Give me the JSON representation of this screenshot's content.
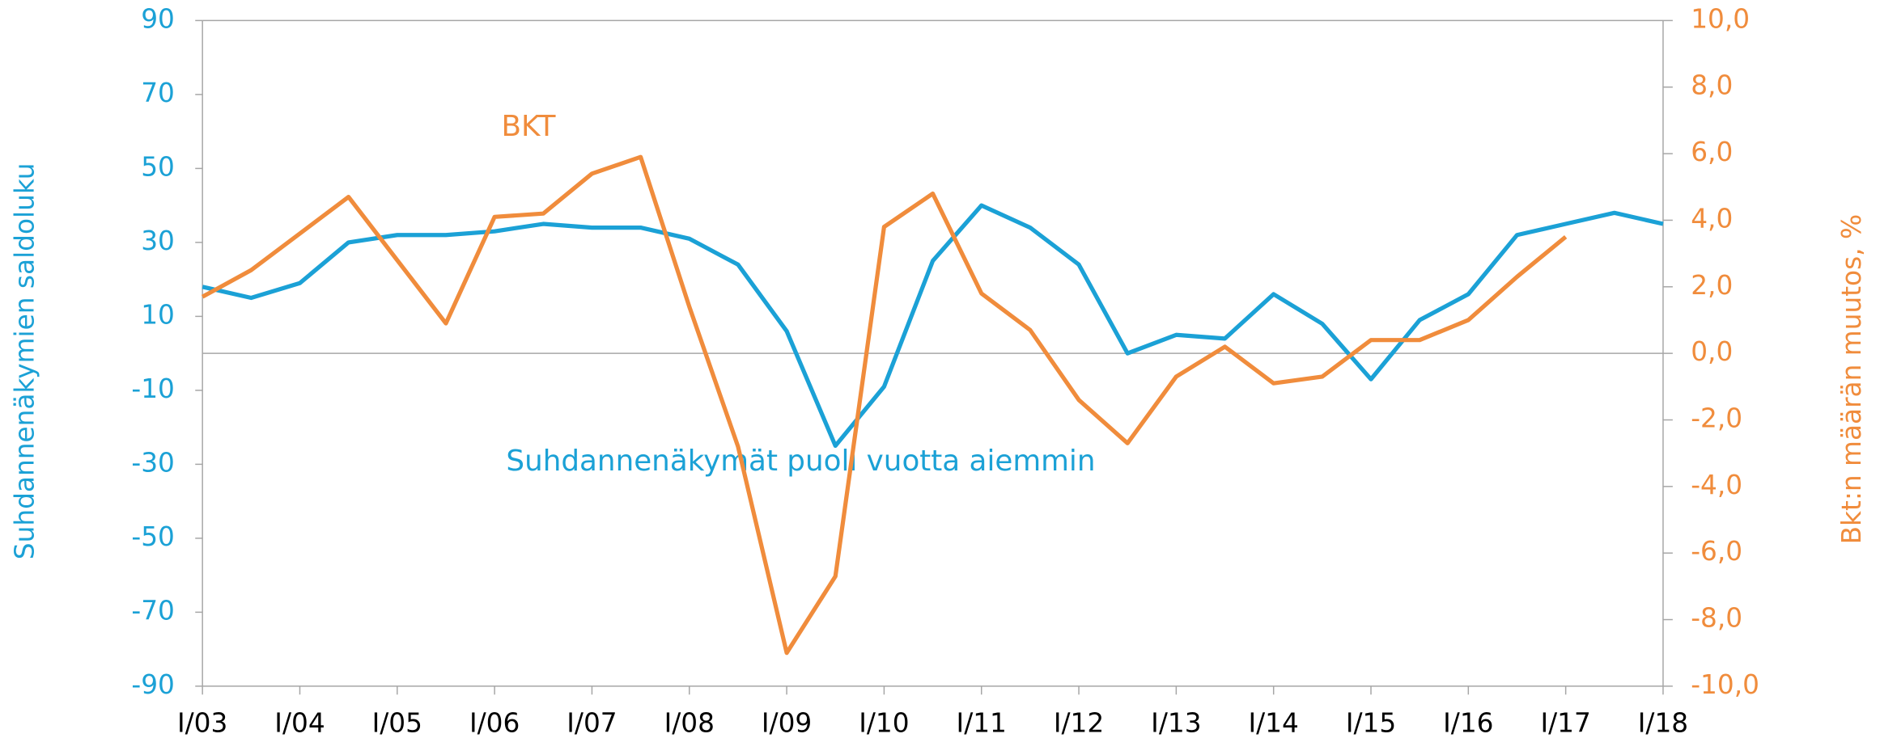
{
  "chart_data": {
    "type": "line",
    "y_label": "Suhdannenäkymien saldoluku",
    "y2_label": "Bkt:n määrän muutos, %",
    "annotations": [
      "BKT",
      "Suhdannenäkymät puoli vuotta aiemmin"
    ],
    "categories": [
      "I/03",
      null,
      "I/04",
      null,
      "I/05",
      null,
      "I/06",
      null,
      "I/07",
      null,
      "I/08",
      null,
      "I/09",
      null,
      "I/10",
      null,
      "I/11",
      null,
      "I/12",
      null,
      "I/13",
      null,
      "I/14",
      null,
      "I/15",
      null,
      "I/16",
      null,
      "I/17",
      null,
      "I/18"
    ],
    "ylim": [
      -90,
      90
    ],
    "yticks": [
      -90,
      -70,
      -50,
      -30,
      -10,
      10,
      30,
      50,
      70,
      90
    ],
    "y2lim": [
      -10,
      10
    ],
    "y2ticks": [
      {
        "value": -10,
        "label": "-10,0"
      },
      {
        "value": -8,
        "label": "-8,0"
      },
      {
        "value": -6,
        "label": "-6,0"
      },
      {
        "value": -4,
        "label": "-4,0"
      },
      {
        "value": -2,
        "label": "-2,0"
      },
      {
        "value": 0,
        "label": "0,0"
      },
      {
        "value": 2,
        "label": "2,0"
      },
      {
        "value": 4,
        "label": "4,0"
      },
      {
        "value": 6,
        "label": "6,0"
      },
      {
        "value": 8,
        "label": "8,0"
      },
      {
        "value": 10,
        "label": "10,0"
      }
    ],
    "series": [
      {
        "name": "Suhdannenäkymät puoli vuotta aiemmin",
        "color": "#1ba1d6",
        "axis": "y",
        "values": [
          18,
          15,
          19,
          30,
          32,
          32,
          33,
          35,
          34,
          34,
          31,
          24,
          6,
          -25,
          -9,
          25,
          40,
          34,
          24,
          0,
          5,
          4,
          16,
          8,
          -7,
          9,
          16,
          32,
          35,
          38,
          35
        ]
      },
      {
        "name": "BKT",
        "color": "#f08c3c",
        "axis": "y2",
        "values": [
          1.7,
          2.5,
          3.6,
          4.7,
          2.8,
          0.9,
          4.1,
          4.2,
          5.4,
          5.9,
          1.4,
          -2.8,
          -9.0,
          -6.7,
          3.8,
          4.8,
          1.8,
          0.7,
          -1.4,
          -2.7,
          -0.7,
          0.2,
          -0.9,
          -0.7,
          0.4,
          0.4,
          1.0,
          2.3,
          3.5,
          null,
          null
        ]
      }
    ]
  }
}
